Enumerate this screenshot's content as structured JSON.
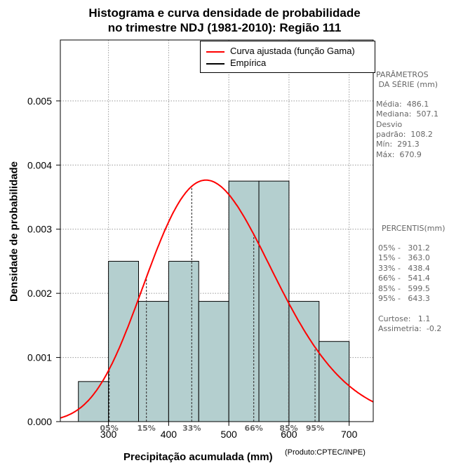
{
  "chart_data": {
    "type": "bar",
    "title": "Histograma e curva densidade de probabilidade",
    "subtitle": "no trimestre NDJ (1981-2010): Região 111",
    "xlabel": "Precipitação acumulada (mm)",
    "ylabel": "Densidade de probabilidade",
    "credit": "(Produto:CPTEC/INPE)",
    "xlim": [
      220,
      740
    ],
    "ylim": [
      0,
      0.00595
    ],
    "xticks": [
      300,
      400,
      500,
      600,
      700
    ],
    "yticks": [
      0.0,
      0.001,
      0.002,
      0.003,
      0.004,
      0.005
    ],
    "ytick_labels": [
      "0.000",
      "0.001",
      "0.002",
      "0.003",
      "0.004",
      "0.005"
    ],
    "grid": true,
    "bins": [
      {
        "from": 250,
        "to": 300,
        "density": 0.000625
      },
      {
        "from": 300,
        "to": 350,
        "density": 0.0025
      },
      {
        "from": 350,
        "to": 400,
        "density": 0.001875
      },
      {
        "from": 400,
        "to": 450,
        "density": 0.0025
      },
      {
        "from": 450,
        "to": 500,
        "density": 0.001875
      },
      {
        "from": 500,
        "to": 550,
        "density": 0.00375
      },
      {
        "from": 550,
        "to": 600,
        "density": 0.00375
      },
      {
        "from": 600,
        "to": 650,
        "density": 0.001875
      },
      {
        "from": 650,
        "to": 700,
        "density": 0.00125
      }
    ],
    "gamma_fit": {
      "mean": 486.1,
      "sd": 108.2
    },
    "percentile_markers": [
      {
        "label": "05%",
        "value": 301.2
      },
      {
        "label": "15%",
        "value": 363.0
      },
      {
        "label": "33%",
        "value": 438.4
      },
      {
        "label": "66%",
        "value": 541.4
      },
      {
        "label": "85%",
        "value": 599.5
      },
      {
        "label": "95%",
        "value": 643.3
      }
    ],
    "legend": [
      {
        "label": "Curva ajustada (função Gama)",
        "color": "#ff0000"
      },
      {
        "label": "Empírica",
        "color": "#000000"
      }
    ],
    "colors": {
      "bar_fill": "#b4cfcf",
      "curve": "#ff0000",
      "grid": "#999999"
    }
  },
  "side_panel": {
    "params_title_1": "PARÂMETROS",
    "params_title_2": " DA SÉRIE (mm)",
    "media": "Média:  486.1",
    "mediana": "Mediana:  507.1",
    "desvio_1": "Desvio",
    "desvio_2": "padrão:  108.2",
    "min": "Mín:  291.3",
    "max": "Máx:  670.9",
    "percentis_title": "PERCENTIS(mm)",
    "p05": "05% -   301.2",
    "p15": "15% -   363.0",
    "p33": "33% -   438.4",
    "p66": "66% -   541.4",
    "p85": "85% -   599.5",
    "p95": "95% -   643.3",
    "curtose": "Curtose:   1.1",
    "assimetria": "Assimetria:  -0.2"
  }
}
